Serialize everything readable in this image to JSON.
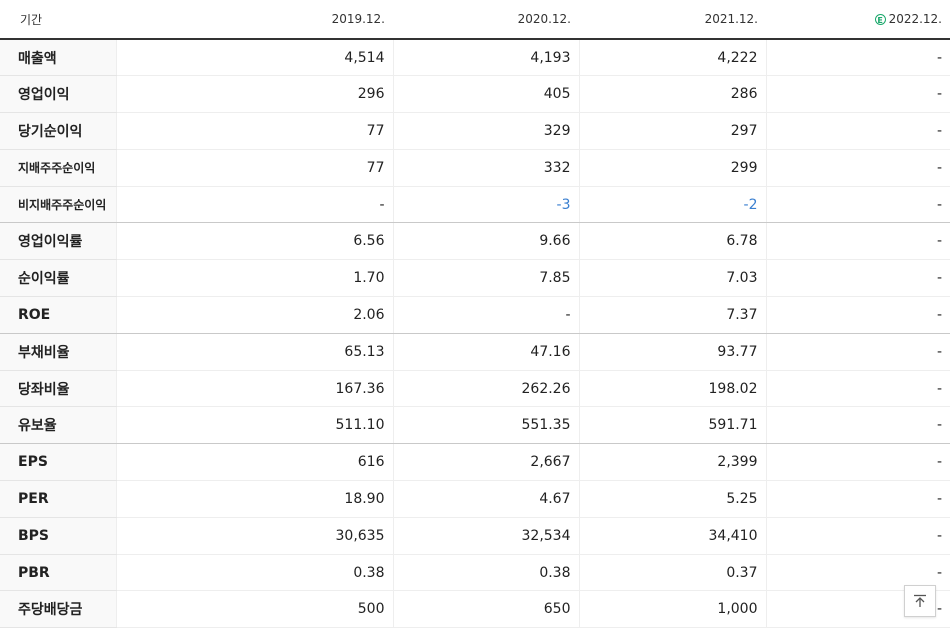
{
  "header": {
    "period_label": "기간",
    "years": [
      "2019.12.",
      "2020.12.",
      "2021.12.",
      "2022.12."
    ],
    "estimate_marker": "E"
  },
  "rows": [
    {
      "label": "매출액",
      "values": [
        "4,514",
        "4,193",
        "4,222",
        "-"
      ]
    },
    {
      "label": "영업이익",
      "values": [
        "296",
        "405",
        "286",
        "-"
      ]
    },
    {
      "label": "당기순이익",
      "values": [
        "77",
        "329",
        "297",
        "-"
      ]
    },
    {
      "label": "지배주주순이익",
      "values": [
        "77",
        "332",
        "299",
        "-"
      ]
    },
    {
      "label": "비지배주주순이익",
      "values": [
        "-",
        "-3",
        "-2",
        "-"
      ]
    },
    {
      "label": "영업이익률",
      "values": [
        "6.56",
        "9.66",
        "6.78",
        "-"
      ]
    },
    {
      "label": "순이익률",
      "values": [
        "1.70",
        "7.85",
        "7.03",
        "-"
      ]
    },
    {
      "label": "ROE",
      "values": [
        "2.06",
        "-",
        "7.37",
        "-"
      ]
    },
    {
      "label": "부채비율",
      "values": [
        "65.13",
        "47.16",
        "93.77",
        "-"
      ]
    },
    {
      "label": "당좌비율",
      "values": [
        "167.36",
        "262.26",
        "198.02",
        "-"
      ]
    },
    {
      "label": "유보율",
      "values": [
        "511.10",
        "551.35",
        "591.71",
        "-"
      ]
    },
    {
      "label": "EPS",
      "values": [
        "616",
        "2,667",
        "2,399",
        "-"
      ]
    },
    {
      "label": "PER",
      "values": [
        "18.90",
        "4.67",
        "5.25",
        "-"
      ]
    },
    {
      "label": "BPS",
      "values": [
        "30,635",
        "32,534",
        "34,410",
        "-"
      ]
    },
    {
      "label": "PBR",
      "values": [
        "0.38",
        "0.38",
        "0.37",
        "-"
      ]
    },
    {
      "label": "주당배당금",
      "values": [
        "500",
        "650",
        "1,000",
        "-"
      ]
    }
  ],
  "colors": {
    "negative": "#3a7fd0",
    "estimate": "#1aa86b"
  },
  "scroll_top_button": {
    "icon": "arrow-up-to-top-icon"
  }
}
